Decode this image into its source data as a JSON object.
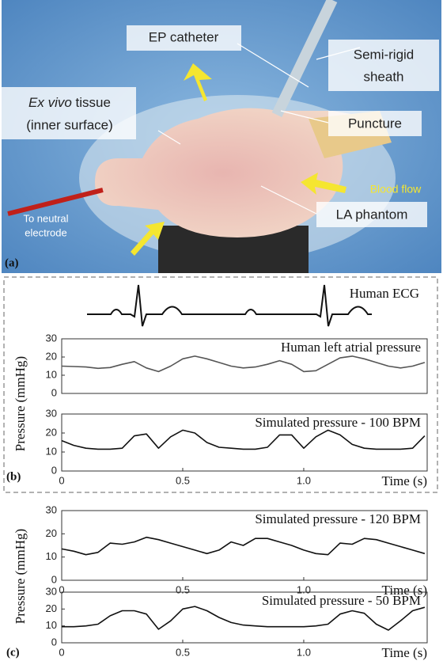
{
  "photo": {
    "panel_label": "(a)",
    "ep_catheter": "EP catheter",
    "sheath": [
      "Semi-rigid",
      "sheath"
    ],
    "tissue": {
      "italic": "Ex vivo",
      "rest": " tissue",
      "line2": "(inner surface)"
    },
    "puncture": "Puncture",
    "blood_flow": "Blood flow",
    "electrode": [
      "To neutral",
      "electrode"
    ],
    "la_phantom": "LA phantom"
  },
  "panel_b": {
    "label": "(b)",
    "ecg_label": "Human ECG",
    "y_label": "Pressure (mmHg)"
  },
  "panel_c": {
    "label": "(c)",
    "y_label": "Pressure (mmHg)"
  },
  "chart_data": [
    {
      "type": "line",
      "title": "Human left atrial pressure",
      "x": [
        0,
        0.05,
        0.1,
        0.15,
        0.2,
        0.25,
        0.3,
        0.35,
        0.4,
        0.45,
        0.5,
        0.55,
        0.6,
        0.65,
        0.7,
        0.75,
        0.8,
        0.85,
        0.9,
        0.95,
        1.0,
        1.05,
        1.1,
        1.15,
        1.2,
        1.25,
        1.3,
        1.35,
        1.4,
        1.45,
        1.5
      ],
      "series": [
        {
          "color": "#555555",
          "values": [
            15,
            14.8,
            14.5,
            13.8,
            14.2,
            16,
            17.5,
            14,
            12,
            15,
            19,
            20.5,
            19,
            17,
            15,
            14,
            14.5,
            16,
            18,
            16,
            12,
            12.5,
            16,
            19.5,
            20.5,
            19,
            17,
            15,
            14,
            15,
            17
          ]
        }
      ],
      "xlim": [
        0,
        1.51
      ],
      "ylim": [
        0,
        30
      ],
      "yticks": [
        0,
        10,
        20,
        30
      ]
    },
    {
      "type": "line",
      "title": "Simulated pressure - 100 BPM",
      "x_label": "Time (s)",
      "x": [
        0,
        0.05,
        0.1,
        0.15,
        0.2,
        0.25,
        0.3,
        0.35,
        0.4,
        0.45,
        0.5,
        0.55,
        0.6,
        0.65,
        0.7,
        0.75,
        0.8,
        0.85,
        0.9,
        0.95,
        1.0,
        1.05,
        1.1,
        1.15,
        1.2,
        1.25,
        1.3,
        1.35,
        1.4,
        1.45,
        1.5
      ],
      "series": [
        {
          "color": "#111111",
          "values": [
            16,
            13.5,
            12,
            11.5,
            11.5,
            12,
            18.5,
            19.5,
            12,
            18,
            21.5,
            20,
            15,
            12.5,
            12,
            11.5,
            11.5,
            12.5,
            19,
            19,
            12,
            18,
            21.5,
            19,
            14,
            12,
            11.5,
            11.5,
            11.5,
            12,
            18.5
          ]
        }
      ],
      "xlim": [
        0,
        1.51
      ],
      "ylim": [
        0,
        30
      ],
      "yticks": [
        0,
        10,
        20,
        30
      ],
      "xticks": [
        0,
        0.5,
        {
          "value": 1,
          "label": "1.0"
        }
      ]
    },
    {
      "type": "line",
      "title": "Simulated pressure - 120 BPM",
      "x_label": "Time (s)",
      "x": [
        0,
        0.05,
        0.1,
        0.15,
        0.2,
        0.25,
        0.3,
        0.35,
        0.4,
        0.45,
        0.5,
        0.55,
        0.6,
        0.65,
        0.7,
        0.75,
        0.8,
        0.85,
        0.9,
        0.95,
        1.0,
        1.05,
        1.1,
        1.15,
        1.2,
        1.25,
        1.3,
        1.35,
        1.4,
        1.45,
        1.5
      ],
      "series": [
        {
          "color": "#111111",
          "values": [
            13.5,
            12.5,
            11,
            12,
            16,
            15.5,
            16.5,
            18.5,
            17.5,
            16,
            14.5,
            13,
            11.5,
            13,
            16.5,
            15,
            18,
            18,
            16.5,
            15,
            13,
            11.5,
            11,
            16,
            15.5,
            18,
            17.5,
            16,
            14.5,
            13,
            11.5
          ]
        }
      ],
      "xlim": [
        0,
        1.51
      ],
      "ylim": [
        0,
        30
      ],
      "yticks": [
        0,
        10,
        20,
        30
      ],
      "xticks": [
        0,
        0.5,
        {
          "value": 1,
          "label": "1.0"
        }
      ]
    },
    {
      "type": "line",
      "title": "Simulated pressure - 50 BPM",
      "x_label": "Time (s)",
      "x": [
        0,
        0.05,
        0.1,
        0.15,
        0.2,
        0.25,
        0.3,
        0.35,
        0.4,
        0.45,
        0.5,
        0.55,
        0.6,
        0.65,
        0.7,
        0.75,
        0.8,
        0.85,
        0.9,
        0.95,
        1.0,
        1.05,
        1.1,
        1.15,
        1.2,
        1.25,
        1.3,
        1.35,
        1.4,
        1.45,
        1.5
      ],
      "series": [
        {
          "color": "#111111",
          "values": [
            9.5,
            9.5,
            10,
            11,
            16,
            19,
            19,
            17,
            8,
            13,
            20,
            21.5,
            19,
            15,
            12,
            10.5,
            10,
            9.5,
            9.5,
            9.5,
            9.5,
            10,
            11,
            17,
            19,
            17.5,
            11,
            7.5,
            13,
            19,
            21
          ]
        }
      ],
      "xlim": [
        0,
        1.51
      ],
      "ylim": [
        0,
        30
      ],
      "yticks": [
        0,
        10,
        20,
        30
      ],
      "xticks": [
        0,
        0.5,
        {
          "value": 1,
          "label": "1.0"
        }
      ]
    }
  ]
}
